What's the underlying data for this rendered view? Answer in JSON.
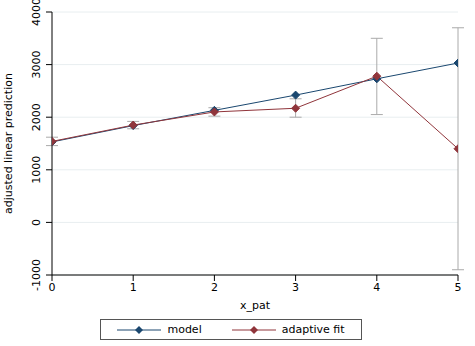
{
  "chart_data": {
    "type": "line",
    "x_label": "x_pat",
    "y_label": "adjusted linear prediction",
    "x": [
      0,
      1,
      2,
      3,
      4,
      5
    ],
    "xlim": [
      0,
      5
    ],
    "xticks": [
      0,
      1,
      2,
      3,
      4,
      5
    ],
    "ylim": [
      -1000,
      4000
    ],
    "yticks": [
      -1000,
      0,
      1000,
      2000,
      3000,
      4000
    ],
    "grid": true,
    "legend": "bottom",
    "series": [
      {
        "name": "model",
        "color": "#1a476f",
        "marker": "diamond",
        "values": [
          1530,
          1840,
          2130,
          2420,
          2730,
          3030
        ]
      },
      {
        "name": "adaptive fit",
        "color": "#90353b",
        "marker": "diamond",
        "values": [
          1540,
          1850,
          2100,
          2170,
          2780,
          1400
        ],
        "ci_low": [
          1460,
          1780,
          2020,
          2000,
          2050,
          -900
        ],
        "ci_high": [
          1620,
          1920,
          2180,
          2350,
          3500,
          3700
        ]
      }
    ]
  }
}
